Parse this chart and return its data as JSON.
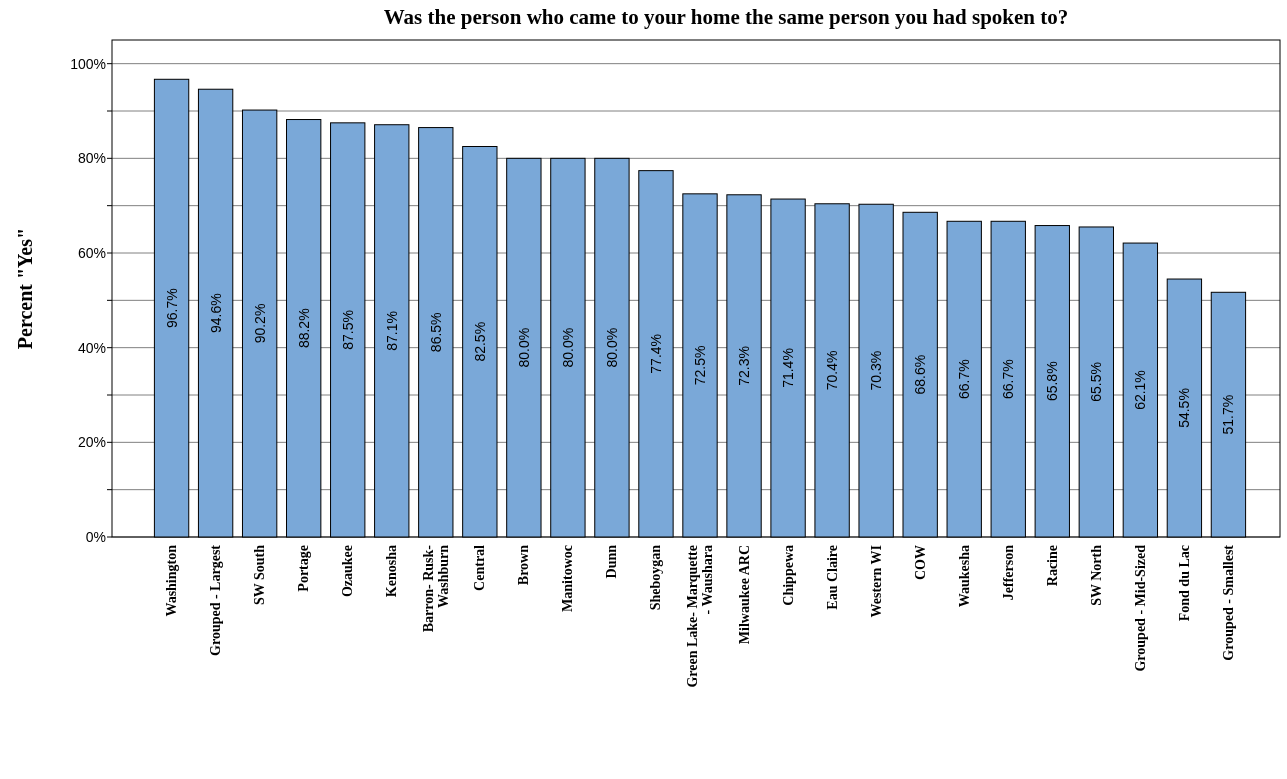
{
  "chart_data": {
    "type": "bar",
    "title": "Was the person who came to your home the same person you had spoken to?",
    "ylabel": "Percent \"Yes\"",
    "categories": [
      "Washington",
      "Grouped - Largest",
      "SW South",
      "Portage",
      "Ozaukee",
      "Kenosha",
      "Barron- Rusk- Washburn",
      "Central",
      "Brown",
      "Manitowoc",
      "Dunn",
      "Sheboygan",
      "Green Lake- Marquette - Waushara",
      "Milwaukee ARC",
      "Chippewa",
      "Eau Claire",
      "Western WI",
      "COW",
      "Waukesha",
      "Jefferson",
      "Racine",
      "SW North",
      "Grouped - Mid-Sized",
      "Fond du Lac",
      "Grouped - Smallest"
    ],
    "values": [
      96.7,
      94.6,
      90.2,
      88.2,
      87.5,
      87.1,
      86.5,
      82.5,
      80.0,
      80.0,
      80.0,
      77.4,
      72.5,
      72.3,
      71.4,
      70.4,
      70.3,
      68.6,
      66.7,
      66.7,
      65.8,
      65.5,
      62.1,
      54.5,
      51.7
    ],
    "value_labels": [
      "96.7%",
      "94.6%",
      "90.2%",
      "88.2%",
      "87.5%",
      "87.1%",
      "86.5%",
      "82.5%",
      "80.0%",
      "80.0%",
      "80.0%",
      "77.4%",
      "72.5%",
      "72.3%",
      "71.4%",
      "70.4%",
      "70.3%",
      "68.6%",
      "66.7%",
      "66.7%",
      "65.8%",
      "65.5%",
      "62.1%",
      "54.5%",
      "51.7%"
    ],
    "color": "#7aa8d8",
    "ylim": [
      0,
      105
    ],
    "yticks": [
      {
        "value": 0,
        "label": "0%"
      },
      {
        "value": 10,
        "label": null
      },
      {
        "value": 20,
        "label": "20%"
      },
      {
        "value": 30,
        "label": null
      },
      {
        "value": 40,
        "label": "40%"
      },
      {
        "value": 50,
        "label": null
      },
      {
        "value": 60,
        "label": "60%"
      },
      {
        "value": 70,
        "label": null
      },
      {
        "value": 80,
        "label": "80%"
      },
      {
        "value": 90,
        "label": null
      },
      {
        "value": 100,
        "label": "100%"
      }
    ],
    "grid": "y"
  }
}
